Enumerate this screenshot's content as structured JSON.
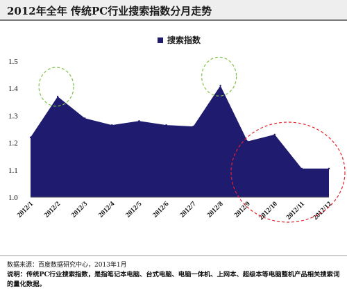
{
  "header": {
    "title": "2012年全年 传统PC行业搜索指数分月走势"
  },
  "footer": {
    "source": "数据来源：百度数据研究中心，2013年1月",
    "note": "说明：传统PC行业搜索指数，是指笔记本电脑、台式电脑、电脑一体机、上网本、超级本等电脑整机产品相关搜索词的量化数据。"
  },
  "chart_data": {
    "type": "area",
    "categories": [
      "2012/1",
      "2012/2",
      "2012/3",
      "2012/4",
      "2012/5",
      "2012/6",
      "2012/7",
      "2012/8",
      "2012/9",
      "2012/10",
      "2012/11",
      "2012/12"
    ],
    "series": [
      {
        "name": "搜索指数",
        "values": [
          1.22,
          1.37,
          1.29,
          1.265,
          1.28,
          1.265,
          1.26,
          1.41,
          1.205,
          1.23,
          1.105,
          1.105
        ]
      }
    ],
    "ylim": [
      1.0,
      1.5
    ],
    "yticks": [
      "1.0",
      "1.1",
      "1.2",
      "1.3",
      "1.4",
      "1.5"
    ],
    "ytick_values": [
      1.0,
      1.1,
      1.2,
      1.3,
      1.4,
      1.5
    ],
    "grid": false,
    "legend_position": "top-center",
    "colors": {
      "area": "#1f1b6e",
      "green_highlight": "#7dc242",
      "red_highlight": "#e8202a"
    }
  }
}
